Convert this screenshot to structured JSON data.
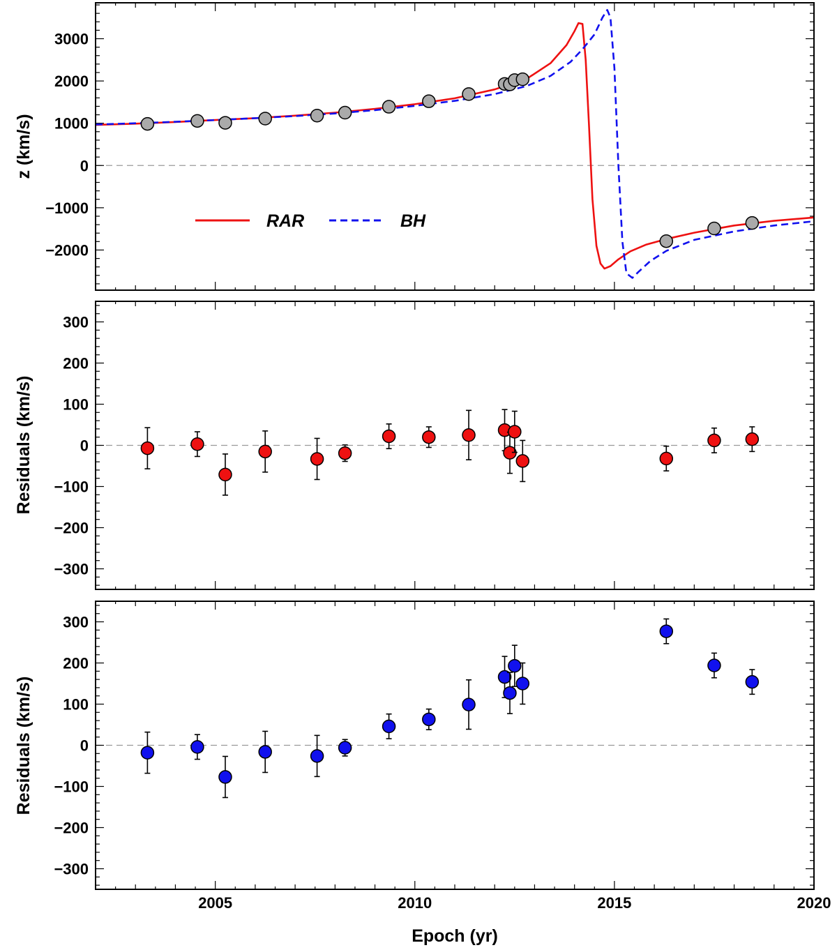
{
  "chart_data": [
    {
      "type": "line",
      "panel": "top",
      "ylabel": "z (km/s)",
      "xlim": [
        2002,
        2020
      ],
      "ylim": [
        -2950,
        3850
      ],
      "yticks": [
        -2000,
        -1000,
        0,
        1000,
        2000,
        3000
      ],
      "ytick_labels": [
        "−2000",
        "−1000",
        "0",
        "1000",
        "2000",
        "3000"
      ],
      "legend": {
        "placement": "lower-left",
        "entries": [
          "RAR",
          "BH"
        ]
      },
      "series": [
        {
          "name": "RAR",
          "style": "solid",
          "color": "#ee1111",
          "x": [
            2002.0,
            2003.0,
            2004.0,
            2005.0,
            2006.0,
            2007.0,
            2008.0,
            2009.0,
            2010.0,
            2011.0,
            2012.0,
            2012.8,
            2013.4,
            2013.8,
            2014.0,
            2014.1,
            2014.2,
            2014.28,
            2014.36,
            2014.45,
            2014.55,
            2014.65,
            2014.75,
            2014.9,
            2015.1,
            2015.4,
            2015.8,
            2016.3,
            2017.0,
            2018.0,
            2019.0,
            2020.0
          ],
          "y": [
            960,
            990,
            1030,
            1075,
            1120,
            1180,
            1250,
            1340,
            1450,
            1590,
            1800,
            2050,
            2420,
            2850,
            3180,
            3370,
            3350,
            2500,
            1000,
            -800,
            -1900,
            -2320,
            -2440,
            -2380,
            -2220,
            -2030,
            -1870,
            -1740,
            -1590,
            -1420,
            -1310,
            -1230
          ]
        },
        {
          "name": "BH",
          "style": "dashed",
          "color": "#1111ee",
          "x": [
            2002.0,
            2003.0,
            2004.0,
            2005.0,
            2006.0,
            2007.0,
            2008.0,
            2009.0,
            2010.0,
            2011.0,
            2012.0,
            2012.8,
            2013.4,
            2013.9,
            2014.2,
            2014.5,
            2014.7,
            2014.82,
            2014.9,
            2015.0,
            2015.1,
            2015.2,
            2015.3,
            2015.45,
            2015.6,
            2015.9,
            2016.3,
            2017.0,
            2018.0,
            2019.0,
            2020.0
          ],
          "y": [
            970,
            1000,
            1035,
            1075,
            1120,
            1170,
            1230,
            1310,
            1410,
            1530,
            1690,
            1880,
            2120,
            2450,
            2750,
            3100,
            3500,
            3680,
            3500,
            2300,
            0,
            -1800,
            -2550,
            -2660,
            -2520,
            -2260,
            -2020,
            -1760,
            -1560,
            -1420,
            -1320
          ]
        }
      ],
      "points": {
        "name": "observations",
        "color": "#aaaaaa",
        "x": [
          2003.3,
          2004.55,
          2005.25,
          2006.25,
          2007.55,
          2008.25,
          2009.35,
          2010.35,
          2011.35,
          2012.25,
          2012.38,
          2012.5,
          2012.7,
          2016.3,
          2017.5,
          2018.45
        ],
        "y": [
          985,
          1055,
          1010,
          1110,
          1180,
          1250,
          1390,
          1520,
          1690,
          1930,
          1920,
          2020,
          2040,
          -1790,
          -1490,
          -1360
        ]
      }
    },
    {
      "type": "scatter",
      "panel": "middle",
      "model": "RAR",
      "ylabel": "Residuals (km/s)",
      "xlim": [
        2002,
        2020
      ],
      "ylim": [
        -350,
        350
      ],
      "yticks": [
        -300,
        -200,
        -100,
        0,
        100,
        200,
        300
      ],
      "ytick_labels": [
        "−300",
        "−200",
        "−100",
        "0",
        "100",
        "200",
        "300"
      ],
      "color": "#ee1111",
      "x": [
        2003.3,
        2004.55,
        2005.25,
        2006.25,
        2007.55,
        2008.25,
        2009.35,
        2010.35,
        2011.35,
        2012.25,
        2012.38,
        2012.5,
        2012.7,
        2016.3,
        2017.5,
        2018.45
      ],
      "y": [
        -7,
        3,
        -71,
        -15,
        -33,
        -19,
        22,
        20,
        25,
        37,
        -18,
        33,
        -38,
        -32,
        12,
        15
      ],
      "err": [
        50,
        30,
        50,
        50,
        50,
        20,
        30,
        25,
        60,
        50,
        50,
        50,
        50,
        30,
        30,
        30
      ]
    },
    {
      "type": "scatter",
      "panel": "bottom",
      "model": "BH",
      "ylabel": "Residuals (km/s)",
      "xlabel": "Epoch (yr)",
      "xlim": [
        2002,
        2020
      ],
      "xticks": [
        2005,
        2010,
        2015,
        2020
      ],
      "xtick_labels": [
        "2005",
        "2010",
        "2015",
        "2020"
      ],
      "ylim": [
        -350,
        350
      ],
      "yticks": [
        -300,
        -200,
        -100,
        0,
        100,
        200,
        300
      ],
      "ytick_labels": [
        "−300",
        "−200",
        "−100",
        "0",
        "100",
        "200",
        "300"
      ],
      "color": "#1111ee",
      "x": [
        2003.3,
        2004.55,
        2005.25,
        2006.25,
        2007.55,
        2008.25,
        2009.35,
        2010.35,
        2011.35,
        2012.25,
        2012.38,
        2012.5,
        2012.7,
        2016.3,
        2017.5,
        2018.45
      ],
      "y": [
        -18,
        -4,
        -77,
        -16,
        -26,
        -6,
        46,
        63,
        99,
        166,
        127,
        193,
        150,
        277,
        194,
        154
      ],
      "err": [
        50,
        30,
        50,
        50,
        50,
        20,
        30,
        25,
        60,
        50,
        50,
        50,
        50,
        30,
        30,
        30
      ]
    }
  ]
}
